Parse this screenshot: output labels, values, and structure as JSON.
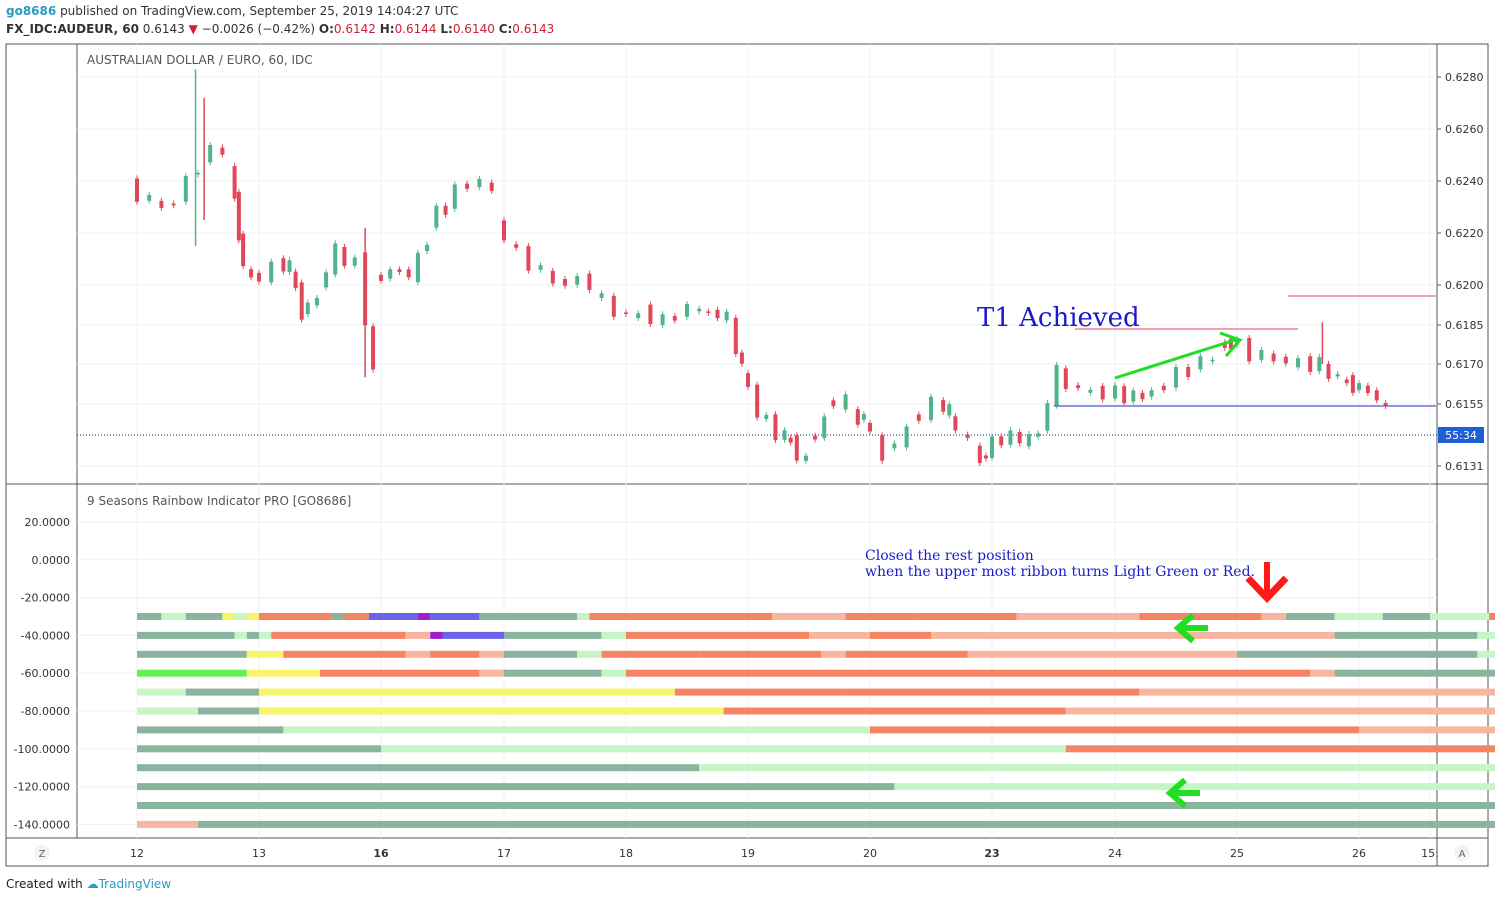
{
  "header": {
    "user": "go8686",
    "published": "published on TradingView.com, September 25, 2019 14:04:27 UTC",
    "symbol": "FX_IDC:AUDEUR, 60",
    "last": "0.6143",
    "change": "−0.0026 (−0.42%)",
    "o_label": "O:",
    "o": "0.6142",
    "h_label": "H:",
    "h": "0.6144",
    "l_label": "L:",
    "l": "0.6140",
    "c_label": "C:",
    "c": "0.6143"
  },
  "footer": {
    "created": "Created with",
    "brand": "TradingView"
  },
  "colors": {
    "up": "#4fb38b",
    "down": "#e0475a",
    "blue_line": "#1f2fc9",
    "red_line": "#e0475a",
    "arrow_green": "#22dd22",
    "arrow_red": "#ff1a1a",
    "annotation": "#1a1acc"
  },
  "chart_data": [
    {
      "type": "candlestick",
      "title": "AUSTRALIAN DOLLAR / EURO, 60, IDC",
      "y_tick_labels": [
        "0.6280",
        "0.6260",
        "0.6240",
        "0.6220",
        "0.6200",
        "0.6185",
        "0.6170",
        "0.6155",
        "0.6131"
      ],
      "x_tick_labels": [
        "12",
        "13",
        "16",
        "17",
        "18",
        "19",
        "20",
        "23",
        "24",
        "25",
        "26",
        "15:"
      ],
      "x_bold_labels": [
        "16",
        "23"
      ],
      "last_price_marker": "55:34",
      "annotation": "T1 Achieved",
      "scale_buttons": {
        "left": "Z",
        "right": "A"
      },
      "series": [
        {
          "values": [
            [
              12,
              0.6238,
              0.6232
            ],
            [
              12.2,
              0.6231,
              0.6231
            ],
            [
              12.4,
              0.6234,
              0.6246
            ],
            [
              12.6,
              0.625,
              0.6252
            ],
            [
              12.8,
              0.6246,
              0.622
            ],
            [
              12.87,
              0.6218,
              0.62
            ],
            [
              13,
              0.6202,
              0.6206
            ],
            [
              13.2,
              0.6208,
              0.6207
            ],
            [
              13.3,
              0.6206,
              0.619
            ],
            [
              13.4,
              0.619,
              0.6195
            ],
            [
              13.55,
              0.6198,
              0.6214
            ],
            [
              13.7,
              0.6212,
              0.6208
            ],
            [
              13.87,
              0.621,
              0.6165
            ],
            [
              14,
              0.6202,
              0.6205
            ],
            [
              14.15,
              0.6206,
              0.6204
            ],
            [
              14.3,
              0.6203,
              0.6218
            ],
            [
              14.45,
              0.6225,
              0.623
            ],
            [
              14.6,
              0.6232,
              0.624
            ],
            [
              14.8,
              0.624,
              0.6237
            ],
            [
              15,
              0.6224,
              0.6212
            ],
            [
              15.2,
              0.6212,
              0.6205
            ],
            [
              15.4,
              0.6204,
              0.62
            ],
            [
              15.6,
              0.6202,
              0.6201
            ],
            [
              15.8,
              0.6198,
              0.619
            ],
            [
              16,
              0.619,
              0.6188
            ],
            [
              16.2,
              0.619,
              0.6186
            ],
            [
              16.4,
              0.6186,
              0.6192
            ],
            [
              16.6,
              0.6191,
              0.6188
            ],
            [
              16.9,
              0.6185,
              0.6168
            ],
            [
              17,
              0.6168,
              0.6152
            ],
            [
              17.15,
              0.6152,
              0.6144
            ],
            [
              17.3,
              0.6144,
              0.614
            ],
            [
              17.4,
              0.614,
              0.6132
            ],
            [
              17.55,
              0.614,
              0.6148
            ],
            [
              17.7,
              0.6155,
              0.6156
            ],
            [
              17.9,
              0.615,
              0.615
            ],
            [
              18,
              0.615,
              0.6134
            ],
            [
              18.2,
              0.6137,
              0.6144
            ],
            [
              18.4,
              0.6148,
              0.6155
            ],
            [
              18.6,
              0.6155,
              0.6152
            ],
            [
              18.7,
              0.615,
              0.614
            ],
            [
              18.9,
              0.6136,
              0.6134
            ],
            [
              19,
              0.6137,
              0.6142
            ],
            [
              19.15,
              0.6142,
              0.6142
            ],
            [
              19.3,
              0.614,
              0.6144
            ],
            [
              19.45,
              0.6144,
              0.6168
            ],
            [
              19.6,
              0.6166,
              0.616
            ],
            [
              19.8,
              0.616,
              0.6159
            ],
            [
              20,
              0.616,
              0.6158
            ],
            [
              20.15,
              0.6158,
              0.6158
            ],
            [
              20.3,
              0.6158,
              0.6162
            ],
            [
              20.5,
              0.6164,
              0.6168
            ],
            [
              20.7,
              0.617,
              0.6172
            ],
            [
              20.9,
              0.6177,
              0.6178
            ],
            [
              21,
              0.618,
              0.6174
            ],
            [
              21.2,
              0.6174,
              0.6172
            ],
            [
              21.4,
              0.6172,
              0.617
            ],
            [
              21.6,
              0.617,
              0.617
            ],
            [
              21.75,
              0.6168,
              0.6165
            ],
            [
              21.9,
              0.6164,
              0.6162
            ],
            [
              22,
              0.6162,
              0.616
            ],
            [
              22.15,
              0.616,
              0.6153
            ],
            [
              22.3,
              0.6153,
              0.6143
            ]
          ]
        }
      ],
      "ylim": [
        0.6125,
        0.629
      ]
    },
    {
      "type": "ribbon",
      "title": "9 Seasons Rainbow Indicator PRO [GO8686]",
      "y_tick_labels": [
        "20.0000",
        "0.0000",
        "-20.0000",
        "-40.0000",
        "-60.0000",
        "-80.0000",
        "-100.0000",
        "-120.0000",
        "-140.0000"
      ],
      "ylim": [
        -144,
        26
      ],
      "annotation_lines": [
        "Closed the rest position",
        "when the upper most ribbon turns Light Green or Red."
      ],
      "palette": {
        "D": "#8ab49d",
        "L": "#c6f5c6",
        "G": "#66ee55",
        "Y": "#f7f56a",
        "R": "#f58465",
        "P": "#f8b6a1",
        "B": "#6b63e8",
        "M": "#a21ec9"
      },
      "ribbons": [
        {
          "level": -30,
          "segments": [
            [
              "D",
              12,
              12.2
            ],
            [
              "L",
              12.2,
              12.4
            ],
            [
              "D",
              12.4,
              12.7
            ],
            [
              "Y",
              12.7,
              12.8
            ],
            [
              "L",
              12.8,
              12.9
            ],
            [
              "Y",
              12.9,
              13.0
            ],
            [
              "R",
              13.0,
              13.6
            ],
            [
              "D",
              13.6,
              13.7
            ],
            [
              "R",
              13.7,
              13.9
            ],
            [
              "B",
              13.9,
              14.3
            ],
            [
              "M",
              14.3,
              14.4
            ],
            [
              "B",
              14.4,
              14.8
            ],
            [
              "D",
              14.8,
              15.6
            ],
            [
              "L",
              15.6,
              15.7
            ],
            [
              "R",
              15.7,
              16.5
            ],
            [
              "R",
              16.5,
              17.2
            ],
            [
              "P",
              17.2,
              17.8
            ],
            [
              "R",
              17.8,
              18.4
            ],
            [
              "R",
              18.4,
              19.2
            ],
            [
              "P",
              19.2,
              20.2
            ],
            [
              "R",
              20.2,
              20.6
            ],
            [
              "R",
              20.6,
              21.2
            ],
            [
              "P",
              21.2,
              21.4
            ],
            [
              "D",
              21.4,
              21.8
            ],
            [
              "L",
              21.8,
              22.2
            ],
            [
              "D",
              22.2,
              22.6
            ],
            [
              "L",
              22.6,
              23.1
            ],
            [
              "R",
              23.1,
              23.6
            ]
          ]
        },
        {
          "level": -40,
          "segments": [
            [
              "D",
              12,
              12.8
            ],
            [
              "L",
              12.8,
              12.9
            ],
            [
              "D",
              12.9,
              13.0
            ],
            [
              "L",
              13.0,
              13.1
            ],
            [
              "R",
              13.1,
              14.2
            ],
            [
              "P",
              14.2,
              14.4
            ],
            [
              "M",
              14.4,
              14.5
            ],
            [
              "B",
              14.5,
              15.0
            ],
            [
              "D",
              15.0,
              15.8
            ],
            [
              "L",
              15.8,
              16.0
            ],
            [
              "R",
              16.0,
              17.5
            ],
            [
              "P",
              17.5,
              18.0
            ],
            [
              "R",
              18.0,
              18.5
            ],
            [
              "P",
              18.5,
              21.8
            ],
            [
              "D",
              21.8,
              22.6
            ],
            [
              "D",
              22.6,
              23.0
            ],
            [
              "L",
              23.0,
              23.4
            ],
            [
              "R",
              23.4,
              23.6
            ]
          ]
        },
        {
          "level": -50,
          "segments": [
            [
              "D",
              12,
              12.9
            ],
            [
              "Y",
              12.9,
              13.2
            ],
            [
              "R",
              13.2,
              14.2
            ],
            [
              "P",
              14.2,
              14.4
            ],
            [
              "R",
              14.4,
              14.8
            ],
            [
              "P",
              14.8,
              15.0
            ],
            [
              "D",
              15.0,
              15.6
            ],
            [
              "L",
              15.6,
              15.8
            ],
            [
              "R",
              15.8,
              16.6
            ],
            [
              "R",
              16.6,
              17.6
            ],
            [
              "P",
              17.6,
              17.8
            ],
            [
              "R",
              17.8,
              18.8
            ],
            [
              "P",
              18.8,
              21.0
            ],
            [
              "D",
              21.0,
              23.0
            ],
            [
              "L",
              23.0,
              23.5
            ],
            [
              "R",
              23.5,
              23.6
            ]
          ]
        },
        {
          "level": -60,
          "segments": [
            [
              "G",
              12,
              12.9
            ],
            [
              "Y",
              12.9,
              13.5
            ],
            [
              "R",
              13.5,
              14.8
            ],
            [
              "P",
              14.8,
              15.0
            ],
            [
              "D",
              15.0,
              15.8
            ],
            [
              "L",
              15.8,
              16.0
            ],
            [
              "R",
              16.0,
              17.8
            ],
            [
              "R",
              17.8,
              20.2
            ],
            [
              "R",
              20.2,
              21.6
            ],
            [
              "P",
              21.6,
              21.8
            ],
            [
              "D",
              21.8,
              23.4
            ],
            [
              "L",
              23.4,
              23.5
            ],
            [
              "R",
              23.5,
              23.6
            ]
          ]
        },
        {
          "level": -70,
          "segments": [
            [
              "L",
              12,
              12.4
            ],
            [
              "D",
              12.4,
              13.0
            ],
            [
              "Y",
              13.0,
              13.2
            ],
            [
              "Y",
              13.2,
              16.4
            ],
            [
              "R",
              16.4,
              17.8
            ],
            [
              "R",
              17.8,
              20.2
            ],
            [
              "P",
              20.2,
              23.6
            ]
          ]
        },
        {
          "level": -80,
          "segments": [
            [
              "L",
              12,
              12.5
            ],
            [
              "D",
              12.5,
              13.0
            ],
            [
              "Y",
              13.0,
              13.2
            ],
            [
              "Y",
              13.2,
              16.8
            ],
            [
              "R",
              16.8,
              19.6
            ],
            [
              "P",
              19.6,
              23.6
            ]
          ]
        },
        {
          "level": -90,
          "segments": [
            [
              "D",
              12,
              13.2
            ],
            [
              "L",
              13.2,
              16.8
            ],
            [
              "L",
              16.8,
              18.0
            ],
            [
              "R",
              18.0,
              22.0
            ],
            [
              "P",
              22.0,
              23.6
            ]
          ]
        },
        {
          "level": -100,
          "segments": [
            [
              "D",
              12,
              14.0
            ],
            [
              "L",
              14.0,
              17.8
            ],
            [
              "L",
              17.8,
              19.6
            ],
            [
              "R",
              19.6,
              23.6
            ]
          ]
        },
        {
          "level": -110,
          "segments": [
            [
              "D",
              12,
              16.6
            ],
            [
              "L",
              16.6,
              23.6
            ]
          ]
        },
        {
          "level": -120,
          "segments": [
            [
              "D",
              12,
              18.2
            ],
            [
              "L",
              18.2,
              23.6
            ]
          ]
        },
        {
          "level": -130,
          "segments": [
            [
              "D",
              12,
              23.6
            ]
          ]
        },
        {
          "level": -140,
          "segments": [
            [
              "P",
              12,
              12.5
            ],
            [
              "D",
              12.5,
              23.6
            ]
          ]
        }
      ]
    }
  ]
}
